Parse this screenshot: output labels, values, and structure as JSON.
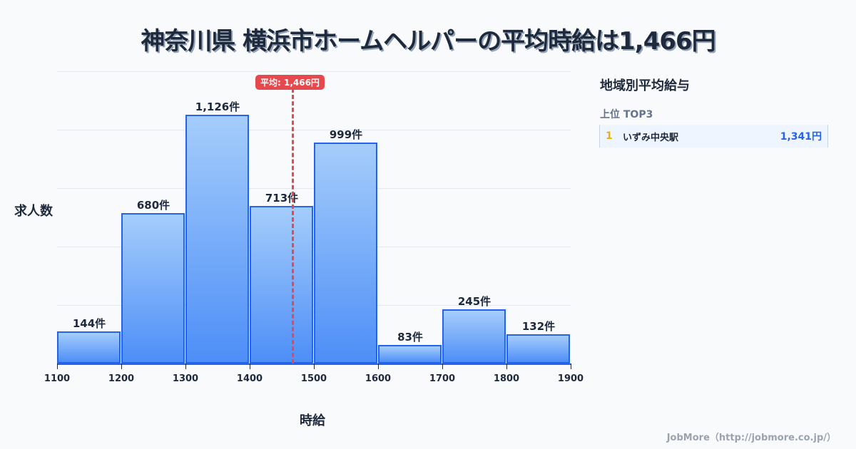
{
  "title": "神奈川県 横浜市ホームヘルパーの平均時給は1,466円",
  "average_badge": "平均: 1,466円",
  "ylabel": "求人数",
  "xlabel": "時給",
  "sidebar": {
    "title": "地域別平均給与",
    "subtitle": "上位 TOP3",
    "ranks": [
      {
        "rank": "1",
        "name": "いずみ中央駅",
        "value": "1,341円"
      }
    ]
  },
  "footer": "JobMore（http://jobmore.co.jp/）",
  "chart_data": {
    "type": "bar",
    "title": "神奈川県 横浜市ホームヘルパーの平均時給は1,466円",
    "xlabel": "時給",
    "ylabel": "求人数",
    "x_ticks": [
      "1100",
      "1200",
      "1300",
      "1400",
      "1500",
      "1600",
      "1700",
      "1800",
      "1900"
    ],
    "categories": [
      "1100-1200",
      "1200-1300",
      "1300-1400",
      "1400-1500",
      "1500-1600",
      "1600-1700",
      "1700-1800",
      "1800-1900"
    ],
    "values": [
      144,
      680,
      1126,
      713,
      999,
      83,
      245,
      132
    ],
    "value_labels": [
      "144件",
      "680件",
      "1,126件",
      "713件",
      "999件",
      "83件",
      "245件",
      "132件"
    ],
    "average": 1466,
    "average_label": "平均: 1,466円",
    "grid": true,
    "colors": {
      "bar_top": "#a5cdfb",
      "bar_bottom": "#4d8ef7",
      "bar_border": "#2563eb",
      "average_line": "#e5484d"
    }
  }
}
